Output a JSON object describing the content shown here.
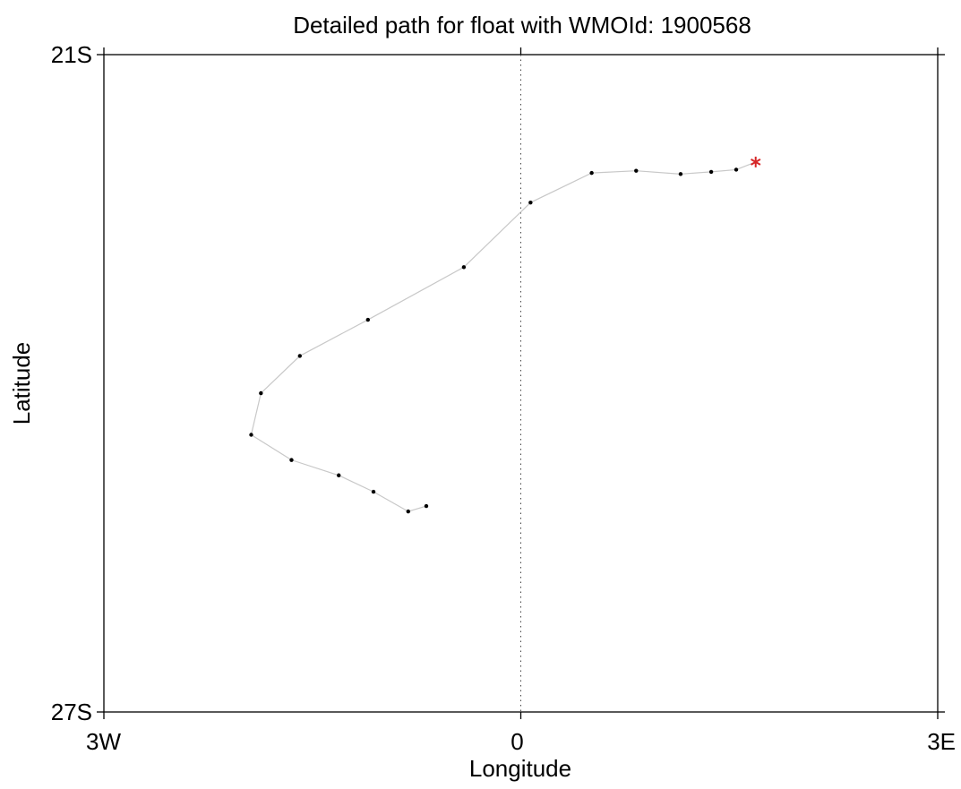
{
  "chart_data": {
    "type": "line",
    "title": "Detailed path for float with WMOId: 1900568",
    "xlabel": "Longitude",
    "ylabel": "Latitude",
    "xlim": [
      -3,
      3
    ],
    "ylim": [
      -27,
      -21
    ],
    "x_ticks": [
      {
        "value": -3,
        "label": "3W"
      },
      {
        "value": 0,
        "label": "0"
      },
      {
        "value": 3,
        "label": "3E"
      }
    ],
    "y_ticks": [
      {
        "value": -21,
        "label": "21S"
      },
      {
        "value": -27,
        "label": "27S"
      }
    ],
    "reference_line": {
      "x": 0,
      "style": "dotted"
    },
    "grid": false,
    "series": [
      {
        "line_color": "#c8c8c8",
        "marker_color": "#000000",
        "points": [
          {
            "x": -0.68,
            "y": -25.12
          },
          {
            "x": -0.81,
            "y": -25.17
          },
          {
            "x": -1.06,
            "y": -24.99
          },
          {
            "x": -1.31,
            "y": -24.84
          },
          {
            "x": -1.65,
            "y": -24.7
          },
          {
            "x": -1.94,
            "y": -24.47
          },
          {
            "x": -1.87,
            "y": -24.09
          },
          {
            "x": -1.59,
            "y": -23.75
          },
          {
            "x": -1.1,
            "y": -23.42
          },
          {
            "x": -0.41,
            "y": -22.94
          },
          {
            "x": 0.07,
            "y": -22.35
          },
          {
            "x": 0.51,
            "y": -22.08
          },
          {
            "x": 0.83,
            "y": -22.06
          },
          {
            "x": 1.15,
            "y": -22.09
          },
          {
            "x": 1.37,
            "y": -22.07
          },
          {
            "x": 1.55,
            "y": -22.05
          }
        ]
      }
    ],
    "last_position": {
      "x": 1.69,
      "y": -21.98,
      "marker": "*",
      "color": "#d62728"
    }
  }
}
